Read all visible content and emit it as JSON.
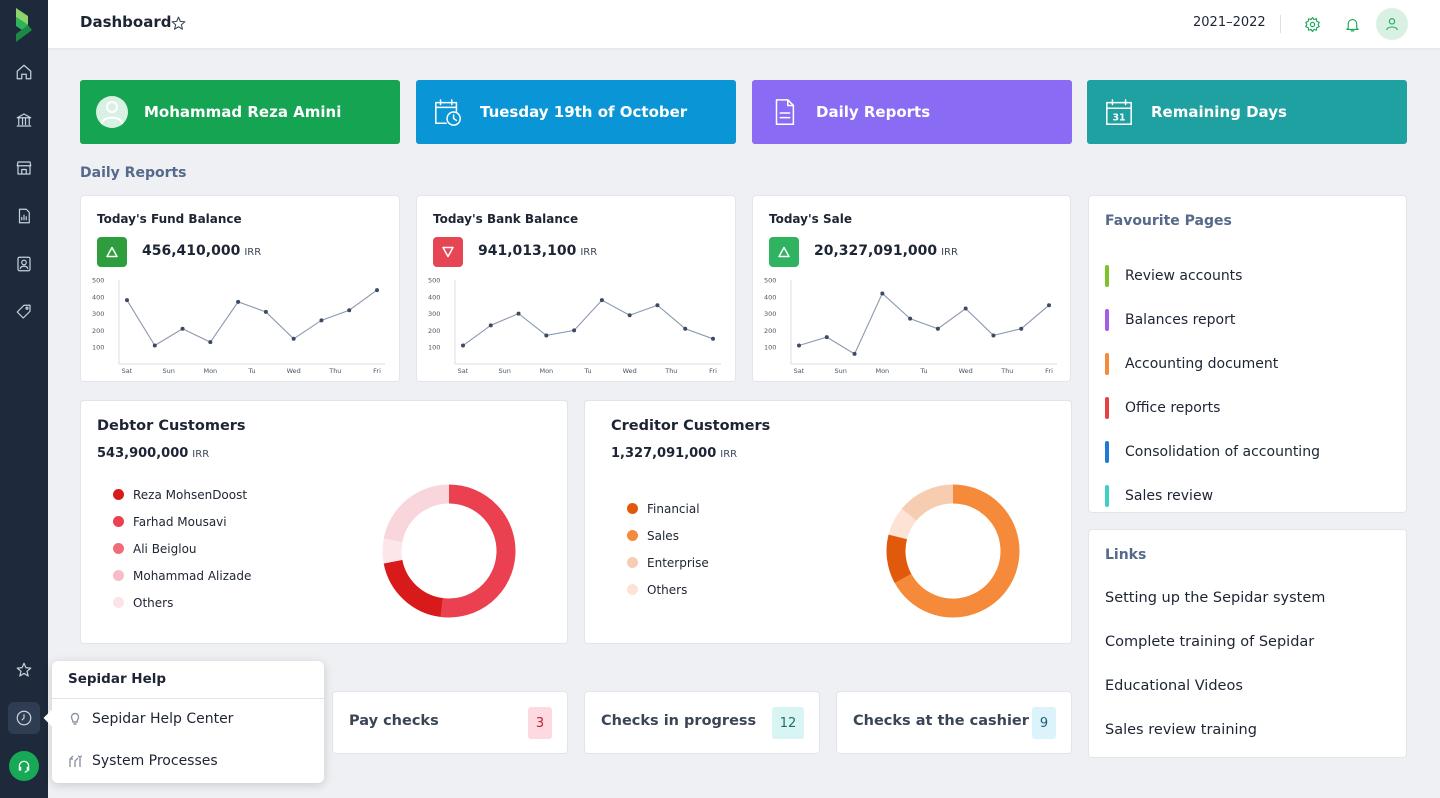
{
  "topbar": {
    "title": "Dashboard",
    "fiscal_year": "2021–2022"
  },
  "banners": [
    {
      "text": "Mohammad Reza Amini",
      "color": "#14a452",
      "icon": "user-avatar-icon"
    },
    {
      "text": "Tuesday 19th of October",
      "color": "#0a96d6",
      "icon": "calendar-clock-icon"
    },
    {
      "text": "Daily Reports",
      "color": "#8a6cf4",
      "icon": "document-icon"
    },
    {
      "text": "Remaining Days",
      "color": "#1fa1a1",
      "icon": "calendar-31-icon"
    }
  ],
  "daily_reports_label": "Daily Reports",
  "kpis": [
    {
      "title": "Today's Fund Balance",
      "value": "456,410,000",
      "unit": "IRR",
      "trend": "up",
      "badge_color": "#2e9e3c"
    },
    {
      "title": "Today's Bank Balance",
      "value": "941,013,100",
      "unit": "IRR",
      "trend": "down",
      "badge_color": "#e64553"
    },
    {
      "title": "Today's Sale",
      "value": "20,327,091,000",
      "unit": "IRR",
      "trend": "up",
      "badge_color": "#2fb360"
    }
  ],
  "chart_data": [
    {
      "type": "line",
      "title": "Today's Fund Balance",
      "categories": [
        "Sat",
        "",
        "Sun",
        "",
        "Mon",
        "",
        "Tu",
        "",
        "Wed",
        "",
        "Thu",
        "",
        "Fri"
      ],
      "x_tick_labels": [
        "Sat",
        "Sun",
        "Mon",
        "Tu",
        "Wed",
        "Thu",
        "Fri"
      ],
      "values": [
        380,
        110,
        210,
        130,
        370,
        310,
        150,
        260,
        320,
        440
      ],
      "x": [
        0,
        1,
        2,
        3,
        4,
        5,
        6,
        7,
        8,
        9
      ],
      "y_ticks": [
        "500",
        "400",
        "300",
        "200",
        "100"
      ],
      "ylim": [
        0,
        500
      ],
      "color": "#5b6b82"
    },
    {
      "type": "line",
      "title": "Today's Bank Balance",
      "x_tick_labels": [
        "Sat",
        "Sun",
        "Mon",
        "Tu",
        "Wed",
        "Thu",
        "Fri"
      ],
      "values": [
        110,
        230,
        300,
        170,
        200,
        380,
        290,
        350,
        210,
        150
      ],
      "x": [
        0,
        1,
        2,
        3,
        4,
        5,
        6,
        7,
        8,
        9
      ],
      "y_ticks": [
        "500",
        "400",
        "300",
        "200",
        "100"
      ],
      "ylim": [
        0,
        500
      ],
      "color": "#5b6b82"
    },
    {
      "type": "line",
      "title": "Today's Sale",
      "x_tick_labels": [
        "Sat",
        "Sun",
        "Mon",
        "Tu",
        "Wed",
        "Thu",
        "Fri"
      ],
      "values": [
        110,
        160,
        60,
        420,
        270,
        210,
        330,
        170,
        210,
        350
      ],
      "x": [
        0,
        1,
        2,
        3,
        4,
        5,
        6,
        7,
        8,
        9
      ],
      "y_ticks": [
        "500",
        "400",
        "300",
        "200",
        "100"
      ],
      "ylim": [
        0,
        500
      ],
      "color": "#5b6b82"
    },
    {
      "type": "pie",
      "title": "Debtor Customers",
      "labels": [
        "Reza MohsenDoost",
        "Farhad Mousavi",
        "Ali Beiglou",
        "Mohammad Alizade",
        "Others"
      ],
      "values": [
        20,
        52,
        0,
        6,
        22
      ],
      "colors": [
        "#d91a1a",
        "#ea4050",
        "#f26b7a",
        "#f9c1cc",
        "#fddde3"
      ],
      "segments_order_clockwise_from_top": [
        {
          "label": "Farhad Mousavi",
          "value": 52,
          "color": "#ea4050"
        },
        {
          "label": "Reza MohsenDoost",
          "value": 20,
          "color": "#d91a1a"
        },
        {
          "label": "Mohammad Alizade",
          "value": 6,
          "color": "#fde6ea"
        },
        {
          "label": "Others",
          "value": 22,
          "color": "#f9d5dc"
        }
      ]
    },
    {
      "type": "pie",
      "title": "Creditor Customers",
      "labels": [
        "Financial",
        "Sales",
        "Enterprise",
        "Others"
      ],
      "values": [
        12,
        67,
        14,
        7
      ],
      "colors": [
        "#e15a0c",
        "#f58a3a",
        "#f7cdb1",
        "#fde3d5"
      ],
      "segments_order_clockwise_from_top": [
        {
          "label": "Sales",
          "value": 67,
          "color": "#f58a3a"
        },
        {
          "label": "Financial",
          "value": 12,
          "color": "#e15a0c"
        },
        {
          "label": "Others",
          "value": 7,
          "color": "#fde3d5"
        },
        {
          "label": "Enterprise",
          "value": 14,
          "color": "#f7cdb1"
        }
      ]
    }
  ],
  "debtors": {
    "title": "Debtor Customers",
    "total": "543,900,000",
    "unit": "IRR",
    "legend": [
      {
        "label": "Reza MohsenDoost",
        "color": "#d91a1a"
      },
      {
        "label": "Farhad Mousavi",
        "color": "#ea4050"
      },
      {
        "label": "Ali Beiglou",
        "color": "#f26b7a"
      },
      {
        "label": "Mohammad Alizade",
        "color": "#f9bcc6"
      },
      {
        "label": "Others",
        "color": "#fde3e8"
      }
    ]
  },
  "creditors": {
    "title": "Creditor Customers",
    "total": "1,327,091,000",
    "unit": "IRR",
    "legend": [
      {
        "label": "Financial",
        "color": "#e15a0c"
      },
      {
        "label": "Sales",
        "color": "#f58a3a"
      },
      {
        "label": "Enterprise",
        "color": "#f7cdb1"
      },
      {
        "label": "Others",
        "color": "#fde3d5"
      }
    ]
  },
  "favourites": {
    "title": "Favourite Pages",
    "items": [
      {
        "label": "Review accounts",
        "color": "#7cc22a"
      },
      {
        "label": "Balances report",
        "color": "#a85ce0"
      },
      {
        "label": "Accounting document",
        "color": "#f58a3a"
      },
      {
        "label": "Office reports",
        "color": "#e64040"
      },
      {
        "label": "Consolidation of accounting",
        "color": "#1e7ad6"
      },
      {
        "label": "Sales review",
        "color": "#40cfc4"
      }
    ]
  },
  "links": {
    "title": "Links",
    "items": [
      "Setting up the Sepidar system",
      "Complete training of Sepidar",
      "Educational Videos",
      "Sales review training"
    ]
  },
  "checks": [
    {
      "label": "Pay checks",
      "count": "3",
      "badge_bg": "#fcdadf",
      "badge_fg": "#c21f3a"
    },
    {
      "label": "Checks in progress",
      "count": "12",
      "badge_bg": "#d9f5f3",
      "badge_fg": "#1b6f6b"
    },
    {
      "label": "Checks at the cashier",
      "count": "9",
      "badge_bg": "#dcf3fb",
      "badge_fg": "#1b5f7a"
    }
  ],
  "help_popup": {
    "title": "Sepidar Help",
    "items": [
      {
        "label": "Sepidar Help Center",
        "icon": "lightbulb-icon"
      },
      {
        "label": "System Processes",
        "icon": "process-icon"
      }
    ]
  }
}
